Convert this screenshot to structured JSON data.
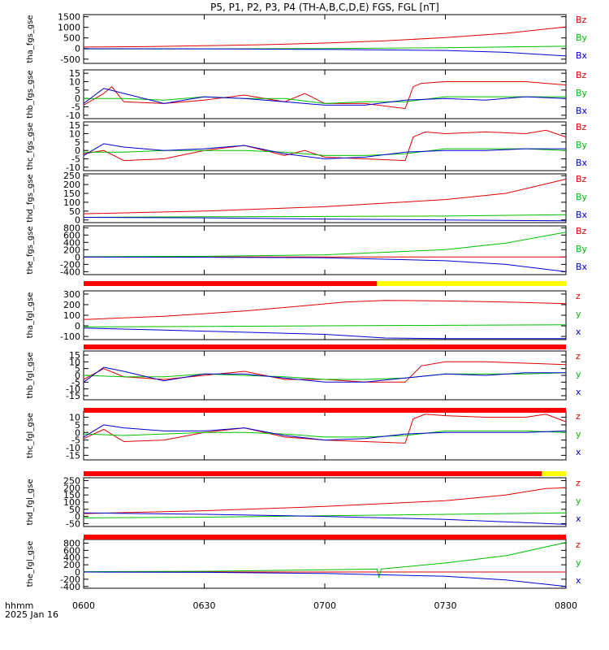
{
  "title": "P5, P1, P2, P3, P4 (TH-A,B,C,D,E) FGS, FGL [nT]",
  "x_axis": {
    "ticks": [
      "0600",
      "0630",
      "0700",
      "0730",
      "0800"
    ],
    "label_line1": "hhmm",
    "label_line2": "2025 Jan 16"
  },
  "colors": {
    "x": "#0000d0",
    "y": "#00c000",
    "z": "#e00000",
    "bar_red": "#ff0000",
    "bar_yellow": "#ffff00"
  },
  "chart_data": [
    {
      "type": "line",
      "ylabel": "tha_fgs_gse",
      "ylim": [
        -700,
        1600
      ],
      "yticks": [
        "-500",
        "0",
        "500",
        "1000",
        "1500"
      ],
      "legend": [
        "Bz",
        "By",
        "Bx"
      ],
      "series": [
        {
          "name": "Bz",
          "component": "z",
          "x": [
            0,
            15,
            30,
            45,
            60,
            75,
            90,
            105,
            120
          ],
          "y": [
            70,
            90,
            130,
            180,
            260,
            360,
            520,
            720,
            1020
          ]
        },
        {
          "name": "By",
          "component": "y",
          "x": [
            0,
            30,
            60,
            90,
            120
          ],
          "y": [
            -20,
            -15,
            0,
            40,
            110
          ]
        },
        {
          "name": "Bx",
          "component": "x",
          "x": [
            0,
            30,
            60,
            90,
            105,
            120
          ],
          "y": [
            -10,
            -15,
            -40,
            -90,
            -180,
            -350
          ]
        }
      ]
    },
    {
      "type": "line",
      "ylabel": "thb_fgs_gse",
      "ylim": [
        -12,
        17
      ],
      "yticks": [
        "-10",
        "-5",
        "0",
        "5",
        "10",
        "15"
      ],
      "legend": [
        "Bz",
        "By",
        "Bx"
      ],
      "series": [
        {
          "name": "Bz",
          "component": "z",
          "x": [
            0,
            5,
            7,
            10,
            20,
            30,
            40,
            50,
            55,
            60,
            70,
            80,
            82,
            84,
            90,
            100,
            110,
            120
          ],
          "y": [
            -4,
            3,
            7,
            -2,
            -3,
            -1,
            2,
            -2,
            3,
            -3,
            -3,
            -6,
            7,
            9,
            10,
            10,
            10,
            8
          ]
        },
        {
          "name": "By",
          "component": "y",
          "x": [
            0,
            10,
            20,
            30,
            40,
            50,
            60,
            70,
            80,
            90,
            100,
            110,
            120
          ],
          "y": [
            0,
            0,
            -1,
            1,
            0,
            0,
            -3,
            -2,
            -2,
            1,
            1,
            1,
            1
          ]
        },
        {
          "name": "Bx",
          "component": "x",
          "x": [
            0,
            5,
            10,
            20,
            30,
            40,
            50,
            60,
            70,
            80,
            90,
            100,
            110,
            120
          ],
          "y": [
            -3,
            6,
            3,
            -3,
            1,
            0,
            -2,
            -4,
            -4,
            -1,
            0,
            -1,
            1,
            0
          ]
        }
      ]
    },
    {
      "type": "line",
      "ylabel": "thc_fgs_gse",
      "ylim": [
        -12,
        17
      ],
      "yticks": [
        "-10",
        "-5",
        "0",
        "5",
        "10",
        "15"
      ],
      "legend": [
        "Bz",
        "By",
        "Bx"
      ],
      "series": [
        {
          "name": "Bz",
          "component": "z",
          "x": [
            0,
            5,
            10,
            20,
            30,
            40,
            50,
            55,
            60,
            70,
            80,
            82,
            85,
            90,
            100,
            110,
            115,
            120
          ],
          "y": [
            -2,
            0,
            -6,
            -5,
            0,
            3,
            -3,
            0,
            -4,
            -5,
            -6,
            8,
            11,
            10,
            11,
            10,
            12,
            8
          ]
        },
        {
          "name": "By",
          "component": "y",
          "x": [
            0,
            10,
            20,
            30,
            40,
            50,
            60,
            70,
            80,
            90,
            100,
            110,
            120
          ],
          "y": [
            -1,
            -1,
            0,
            0,
            0,
            -1,
            -3,
            -3,
            -2,
            1,
            1,
            1,
            0
          ]
        },
        {
          "name": "Bx",
          "component": "x",
          "x": [
            0,
            5,
            10,
            20,
            30,
            40,
            50,
            60,
            70,
            80,
            90,
            100,
            110,
            120
          ],
          "y": [
            -3,
            4,
            2,
            0,
            1,
            3,
            -2,
            -5,
            -4,
            -1,
            0,
            0,
            1,
            1
          ]
        }
      ]
    },
    {
      "type": "line",
      "ylabel": "thd_fgs_gse",
      "ylim": [
        -15,
        260
      ],
      "yticks": [
        "0",
        "50",
        "100",
        "150",
        "200",
        "250"
      ],
      "legend": [
        "Bz",
        "By",
        "Bx"
      ],
      "series": [
        {
          "name": "Bz",
          "component": "z",
          "x": [
            0,
            30,
            60,
            90,
            105,
            120
          ],
          "y": [
            35,
            50,
            75,
            115,
            150,
            230
          ]
        },
        {
          "name": "By",
          "component": "y",
          "x": [
            0,
            30,
            60,
            90,
            120
          ],
          "y": [
            15,
            18,
            20,
            22,
            30
          ]
        },
        {
          "name": "Bx",
          "component": "x",
          "x": [
            0,
            30,
            60,
            90,
            120
          ],
          "y": [
            15,
            12,
            5,
            0,
            -5
          ]
        }
      ]
    },
    {
      "type": "line",
      "ylabel": "the_fgs_gse",
      "ylim": [
        -480,
        850
      ],
      "yticks": [
        "-400",
        "-200",
        "0",
        "200",
        "400",
        "600",
        "800"
      ],
      "legend": [
        "Bz",
        "By",
        "Bx"
      ],
      "series": [
        {
          "name": "Bz",
          "component": "z",
          "x": [
            0,
            60,
            120
          ],
          "y": [
            0,
            0,
            0
          ]
        },
        {
          "name": "By",
          "component": "y",
          "x": [
            0,
            30,
            60,
            90,
            105,
            120
          ],
          "y": [
            10,
            20,
            60,
            200,
            380,
            680
          ]
        },
        {
          "name": "Bx",
          "component": "x",
          "x": [
            0,
            30,
            60,
            90,
            105,
            120
          ],
          "y": [
            0,
            -5,
            -20,
            -100,
            -200,
            -400
          ]
        }
      ]
    },
    {
      "type": "line",
      "ylabel": "tha_fgl_gse",
      "ylim": [
        -130,
        330
      ],
      "yticks": [
        "-100",
        "0",
        "100",
        "200",
        "300"
      ],
      "legend": [
        "z",
        "y",
        "x"
      ],
      "series": [
        {
          "name": "z",
          "component": "z",
          "x": [
            0,
            20,
            40,
            55,
            65,
            75,
            90,
            105,
            120
          ],
          "y": [
            60,
            90,
            140,
            190,
            225,
            240,
            235,
            225,
            210
          ]
        },
        {
          "name": "y",
          "component": "y",
          "x": [
            0,
            30,
            60,
            90,
            120
          ],
          "y": [
            -10,
            -5,
            0,
            5,
            10
          ]
        },
        {
          "name": "x",
          "component": "x",
          "x": [
            0,
            20,
            40,
            60,
            75,
            90,
            120
          ],
          "y": [
            -20,
            -40,
            -60,
            -80,
            -115,
            -120,
            -120
          ]
        }
      ]
    },
    {
      "type": "line",
      "ylabel": "thb_fgl_gse",
      "ylim": [
        -18,
        18
      ],
      "yticks": [
        "-15",
        "-10",
        "-5",
        "0",
        "5",
        "10",
        "15"
      ],
      "legend": [
        "z",
        "y",
        "x"
      ],
      "series": [
        {
          "name": "z",
          "component": "z",
          "x": [
            0,
            5,
            10,
            20,
            30,
            40,
            50,
            60,
            70,
            80,
            84,
            90,
            100,
            110,
            120
          ],
          "y": [
            -3,
            5,
            -1,
            -3,
            0,
            3,
            -3,
            -3,
            -5,
            -5,
            7,
            10,
            10,
            9,
            8
          ]
        },
        {
          "name": "y",
          "component": "y",
          "x": [
            0,
            10,
            20,
            30,
            40,
            50,
            60,
            70,
            80,
            90,
            100,
            110,
            120
          ],
          "y": [
            0,
            -1,
            -1,
            1,
            0,
            -1,
            -3,
            -3,
            -2,
            1,
            1,
            1,
            2
          ]
        },
        {
          "name": "x",
          "component": "x",
          "x": [
            0,
            5,
            10,
            20,
            30,
            40,
            50,
            60,
            70,
            80,
            90,
            100,
            110,
            120
          ],
          "y": [
            -5,
            6,
            3,
            -4,
            1,
            1,
            -2,
            -5,
            -5,
            -2,
            1,
            0,
            2,
            2
          ]
        }
      ]
    },
    {
      "type": "line",
      "ylabel": "thc_fgl_gse",
      "ylim": [
        -18,
        14
      ],
      "yticks": [
        "-15",
        "-10",
        "-5",
        "0",
        "5",
        "10"
      ],
      "legend": [
        "z",
        "y",
        "x"
      ],
      "series": [
        {
          "name": "z",
          "component": "z",
          "x": [
            0,
            5,
            10,
            20,
            30,
            40,
            50,
            60,
            70,
            80,
            82,
            85,
            90,
            100,
            110,
            115,
            120
          ],
          "y": [
            -4,
            2,
            -6,
            -5,
            0,
            3,
            -3,
            -5,
            -6,
            -7,
            9,
            12,
            11,
            10,
            10,
            12,
            7
          ]
        },
        {
          "name": "y",
          "component": "y",
          "x": [
            0,
            10,
            20,
            30,
            40,
            50,
            60,
            70,
            80,
            90,
            100,
            110,
            120
          ],
          "y": [
            -1,
            -2,
            -1,
            0,
            0,
            -1,
            -3,
            -3,
            -2,
            1,
            1,
            1,
            0
          ]
        },
        {
          "name": "x",
          "component": "x",
          "x": [
            0,
            5,
            10,
            20,
            30,
            40,
            50,
            60,
            70,
            80,
            90,
            100,
            110,
            120
          ],
          "y": [
            -3,
            5,
            3,
            1,
            1,
            3,
            -2,
            -5,
            -4,
            -1,
            0,
            0,
            0,
            1
          ]
        }
      ]
    },
    {
      "type": "line",
      "ylabel": "thd_fgl_gse",
      "ylim": [
        -70,
        270
      ],
      "yticks": [
        "-50",
        "0",
        "50",
        "100",
        "150",
        "200",
        "250"
      ],
      "legend": [
        "z",
        "y",
        "x"
      ],
      "series": [
        {
          "name": "z",
          "component": "z",
          "x": [
            0,
            30,
            60,
            90,
            105,
            115,
            120
          ],
          "y": [
            20,
            40,
            70,
            110,
            150,
            195,
            200
          ]
        },
        {
          "name": "y",
          "component": "y",
          "x": [
            0,
            30,
            60,
            90,
            120
          ],
          "y": [
            -10,
            -5,
            5,
            15,
            25
          ]
        },
        {
          "name": "x",
          "component": "x",
          "x": [
            0,
            30,
            60,
            90,
            120
          ],
          "y": [
            25,
            15,
            0,
            -20,
            -55
          ]
        }
      ]
    },
    {
      "type": "line",
      "ylabel": "the_fgl_gse",
      "ylim": [
        -450,
        900
      ],
      "yticks": [
        "-400",
        "-200",
        "0",
        "200",
        "400",
        "600",
        "800"
      ],
      "legend": [
        "z",
        "y",
        "x"
      ],
      "series": [
        {
          "name": "z",
          "component": "z",
          "x": [
            0,
            60,
            120
          ],
          "y": [
            0,
            0,
            0
          ]
        },
        {
          "name": "y",
          "component": "y",
          "x": [
            0,
            30,
            60,
            73,
            73.5,
            74,
            90,
            105,
            120
          ],
          "y": [
            10,
            20,
            60,
            80,
            -150,
            80,
            250,
            450,
            820
          ]
        },
        {
          "name": "x",
          "component": "x",
          "x": [
            0,
            30,
            60,
            90,
            105,
            120
          ],
          "y": [
            0,
            -10,
            -40,
            -120,
            -220,
            -400
          ]
        }
      ]
    }
  ]
}
